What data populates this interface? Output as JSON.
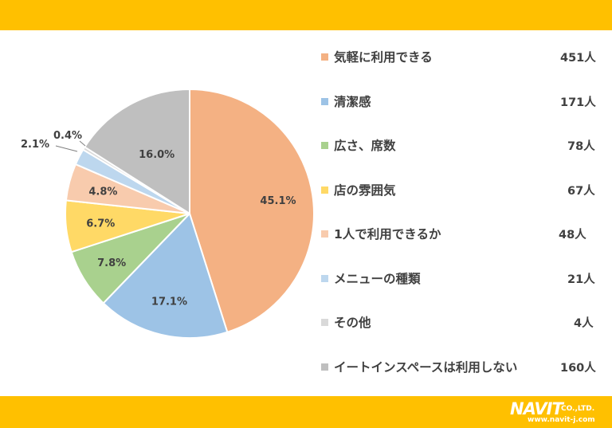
{
  "chart_data": {
    "type": "pie",
    "categories": [
      "気軽に利用できる",
      "清潔感",
      "広さ、席数",
      "店の雰囲気",
      "1人で利用できるか",
      "メニューの種類",
      "その他",
      "イートインスペースは利用しない"
    ],
    "percent_labels": [
      "45.1%",
      "17.1%",
      "7.8%",
      "6.7%",
      "4.8%",
      "2.1%",
      "0.4%",
      "16.0%"
    ],
    "values": [
      45.1,
      17.1,
      7.8,
      6.7,
      4.8,
      2.1,
      0.4,
      16.0
    ],
    "counts": [
      "451人",
      "171人",
      "78人",
      "67人",
      "48人",
      "21人",
      "4人",
      "160人"
    ],
    "colors": [
      "#f4b183",
      "#9dc3e6",
      "#a9d18e",
      "#ffd966",
      "#f8cbad",
      "#bdd7ee",
      "#d9d9d9",
      "#bfbfbf"
    ],
    "legend_position": "right",
    "start_angle": "12 o'clock, clockwise"
  },
  "branding": {
    "logo_main": "NAVIT",
    "logo_sub": "CO.,LTD.",
    "logo_url": "www.navit-j.com"
  }
}
